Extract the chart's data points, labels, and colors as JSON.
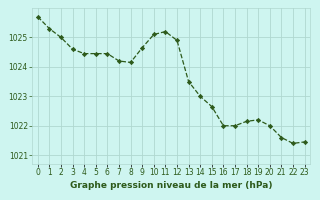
{
  "x": [
    0,
    1,
    2,
    3,
    4,
    5,
    6,
    7,
    8,
    9,
    10,
    11,
    12,
    13,
    14,
    15,
    16,
    17,
    18,
    19,
    20,
    21,
    22,
    23
  ],
  "y": [
    1025.7,
    1025.3,
    1025.0,
    1024.6,
    1024.45,
    1024.45,
    1024.45,
    1024.2,
    1024.15,
    1024.65,
    1025.1,
    1025.2,
    1024.9,
    1023.5,
    1023.0,
    1022.65,
    1022.0,
    1022.0,
    1022.15,
    1022.2,
    1022.0,
    1021.6,
    1021.4,
    1021.45
  ],
  "line_color": "#2d5a1b",
  "marker": "D",
  "marker_size": 2.2,
  "linewidth": 0.9,
  "bg_color": "#cef5f0",
  "grid_color": "#b0d8d0",
  "xlabel": "Graphe pression niveau de la mer (hPa)",
  "xlabel_color": "#2d5a1b",
  "xlabel_fontsize": 6.5,
  "tick_color": "#2d5a1b",
  "tick_fontsize": 5.5,
  "ylim": [
    1020.7,
    1026.0
  ],
  "yticks": [
    1021,
    1022,
    1023,
    1024,
    1025
  ],
  "xlim": [
    -0.5,
    23.5
  ]
}
